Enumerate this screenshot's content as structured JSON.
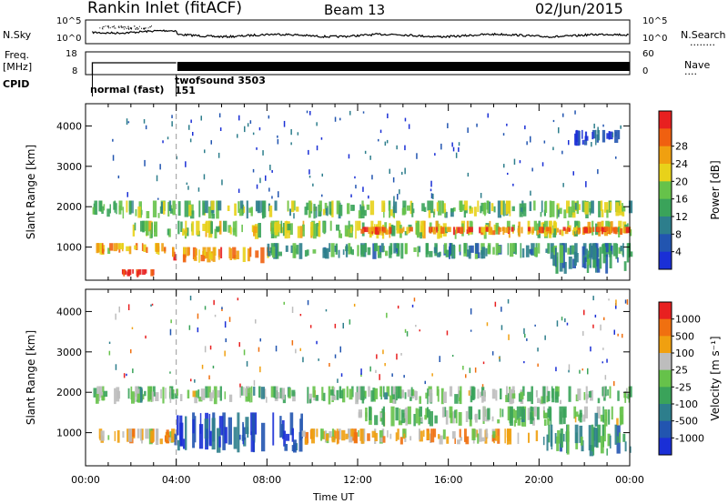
{
  "header": {
    "station": "Rankin Inlet (fitACF)",
    "beam": "Beam 13",
    "date": "02/Jun/2015"
  },
  "left_labels": {
    "nsky": "N.Sky",
    "freq": "Freq.",
    "freq_unit": "[MHz]",
    "cpid": "CPID"
  },
  "right_labels": {
    "nsearch": "N.Search",
    "nave": "Nave",
    "dots": "........",
    "dots2": "...."
  },
  "noise_axis": {
    "top_label": "10^5",
    "bottom_label": "10^0",
    "right_top_label": "10^5",
    "right_bottom_label": "10^0"
  },
  "freq_axis": {
    "top": "18",
    "bottom": "8",
    "right_top": "60",
    "right_bottom": "0"
  },
  "cpid": {
    "segment1": "normal (fast)",
    "segment2_name": "twofsound 3503",
    "segment2_id": "151"
  },
  "panels": {
    "ylabel": "Slant Range [km]",
    "xlabel": "Time UT"
  },
  "colors": {
    "power_scale": [
      "#1a2fd6",
      "#2255b0",
      "#2d7e8c",
      "#3aa35a",
      "#66c24a",
      "#e8d21a",
      "#f0a010",
      "#f06010",
      "#e82020"
    ],
    "velocity_scale": [
      "#1a2fd6",
      "#2255b0",
      "#2d7e8c",
      "#3aa35a",
      "#66c24a",
      "#bdbdbd",
      "#f0a010",
      "#f07010",
      "#e82020"
    ]
  },
  "chart_data": [
    {
      "type": "heatmap",
      "name": "power",
      "title": "",
      "xlabel": "Time UT",
      "ylabel": "Slant Range [km]",
      "x_ticks": [
        "00:00",
        "04:00",
        "08:00",
        "12:00",
        "16:00",
        "20:00",
        "00:00"
      ],
      "xlim_hours": [
        0,
        24
      ],
      "y_ticks": [
        1000,
        2000,
        3000,
        4000
      ],
      "ylim": [
        180,
        4550
      ],
      "colorbar_label": "Power [dB]",
      "colorbar_ticks": [
        "4",
        "8",
        "12",
        "16",
        "20",
        "24",
        "28"
      ],
      "bands": [
        {
          "t0": 0.3,
          "t1": 24.0,
          "r0": 1700,
          "r1": 2150,
          "level": 0.45
        },
        {
          "t0": 2.0,
          "t1": 24.0,
          "r0": 1200,
          "r1": 1650,
          "level": 0.55
        },
        {
          "t0": 12.0,
          "t1": 24.0,
          "r0": 1300,
          "r1": 1500,
          "level": 0.8
        },
        {
          "t0": 0.3,
          "t1": 3.5,
          "r0": 800,
          "r1": 1100,
          "level": 0.7
        },
        {
          "t0": 1.5,
          "t1": 3.0,
          "r0": 250,
          "r1": 450,
          "level": 0.95
        },
        {
          "t0": 3.8,
          "t1": 8.0,
          "r0": 600,
          "r1": 1000,
          "level": 0.75
        },
        {
          "t0": 8.0,
          "t1": 24.0,
          "r0": 700,
          "r1": 1100,
          "level": 0.35
        },
        {
          "t0": 20.5,
          "t1": 24.0,
          "r0": 300,
          "r1": 1100,
          "level": 0.3
        },
        {
          "t0": 21.5,
          "t1": 23.5,
          "r0": 3500,
          "r1": 3900,
          "level": 0.1
        }
      ]
    },
    {
      "type": "heatmap",
      "name": "velocity",
      "title": "",
      "xlabel": "Time UT",
      "ylabel": "Slant Range [km]",
      "x_ticks": [
        "00:00",
        "04:00",
        "08:00",
        "12:00",
        "16:00",
        "20:00",
        "00:00"
      ],
      "xlim_hours": [
        0,
        24
      ],
      "y_ticks": [
        1000,
        2000,
        3000,
        4000
      ],
      "ylim": [
        180,
        4550
      ],
      "colorbar_label": "Velocity [m s⁻¹]",
      "colorbar_ticks": [
        "1000",
        "500",
        "100",
        "25",
        "-25",
        "-100",
        "-500",
        "-1000"
      ],
      "bands": [
        {
          "t0": 0.3,
          "t1": 24.0,
          "r0": 1700,
          "r1": 2150,
          "level": 0.5
        },
        {
          "t0": 12.0,
          "t1": 24.0,
          "r0": 1150,
          "r1": 1650,
          "level": 0.5
        },
        {
          "t0": 0.3,
          "t1": 3.8,
          "r0": 700,
          "r1": 1100,
          "level": 0.68
        },
        {
          "t0": 3.8,
          "t1": 9.5,
          "r0": 500,
          "r1": 1500,
          "level": 0.15
        },
        {
          "t0": 9.5,
          "t1": 20.0,
          "r0": 700,
          "r1": 1100,
          "level": 0.7
        },
        {
          "t0": 20.0,
          "t1": 24.0,
          "r0": 400,
          "r1": 1200,
          "level": 0.38
        }
      ]
    }
  ]
}
